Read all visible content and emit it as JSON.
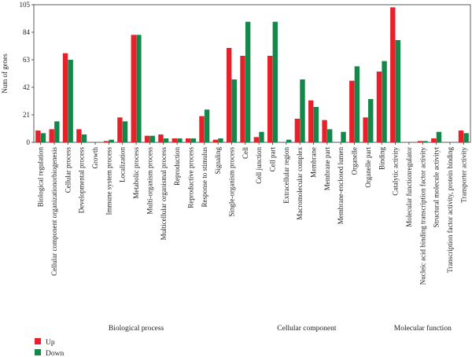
{
  "chart_data": {
    "type": "bar",
    "ylabel": "Num of genes",
    "xlabel": "",
    "ylim": [
      0,
      105
    ],
    "yticks": [
      0,
      21,
      42,
      63,
      84,
      105
    ],
    "grid": false,
    "legend_position": "bottom-left",
    "colors": {
      "Up": "#e8202a",
      "Down": "#14884a"
    },
    "categories": [
      "Biological regulation",
      "Cellular component organizationorbiogenesis",
      "Cellular process",
      "Developmental process",
      "Growth",
      "Immune system process",
      "Localization",
      "Metabolic process",
      "Multi-organism process",
      "Multicellular organismal process",
      "Reproduction",
      "Reproductive process",
      "Response to stimulus",
      "Signaling",
      "Single-organism process",
      "Cell",
      "Cell junction",
      "Cell part",
      "Extracellular region",
      "Macromolecular complex",
      "Membrane",
      "Membrane part",
      "Membrane-enclosed lumen",
      "Organelle",
      "Organelle part",
      "Binding",
      "Catalytic activity",
      "Molecular functionregulator",
      "Nucleic acid binding transcription factor activity",
      "Structural molecule activityt",
      "Transcription factor activity, protein binding",
      "Transporter activity"
    ],
    "series": [
      {
        "name": "Up",
        "values": [
          9,
          10,
          68,
          10,
          0,
          1,
          19,
          82,
          5,
          6,
          3,
          3,
          20,
          2,
          72,
          66,
          4,
          66,
          0,
          18,
          32,
          17,
          0,
          47,
          19,
          54,
          103,
          0,
          1,
          3,
          0,
          9
        ]
      },
      {
        "name": "Down",
        "values": [
          7,
          16,
          63,
          6,
          0,
          2,
          16,
          82,
          5,
          3,
          3,
          3,
          25,
          3,
          48,
          92,
          8,
          92,
          2,
          48,
          27,
          10,
          8,
          58,
          33,
          62,
          78,
          0,
          1,
          8,
          0,
          7
        ]
      }
    ],
    "groups": [
      {
        "label": "Biological process",
        "start": 0,
        "end": 14
      },
      {
        "label": "Cellular component",
        "start": 15,
        "end": 24
      },
      {
        "label": "Molecular function",
        "start": 25,
        "end": 31
      }
    ]
  }
}
